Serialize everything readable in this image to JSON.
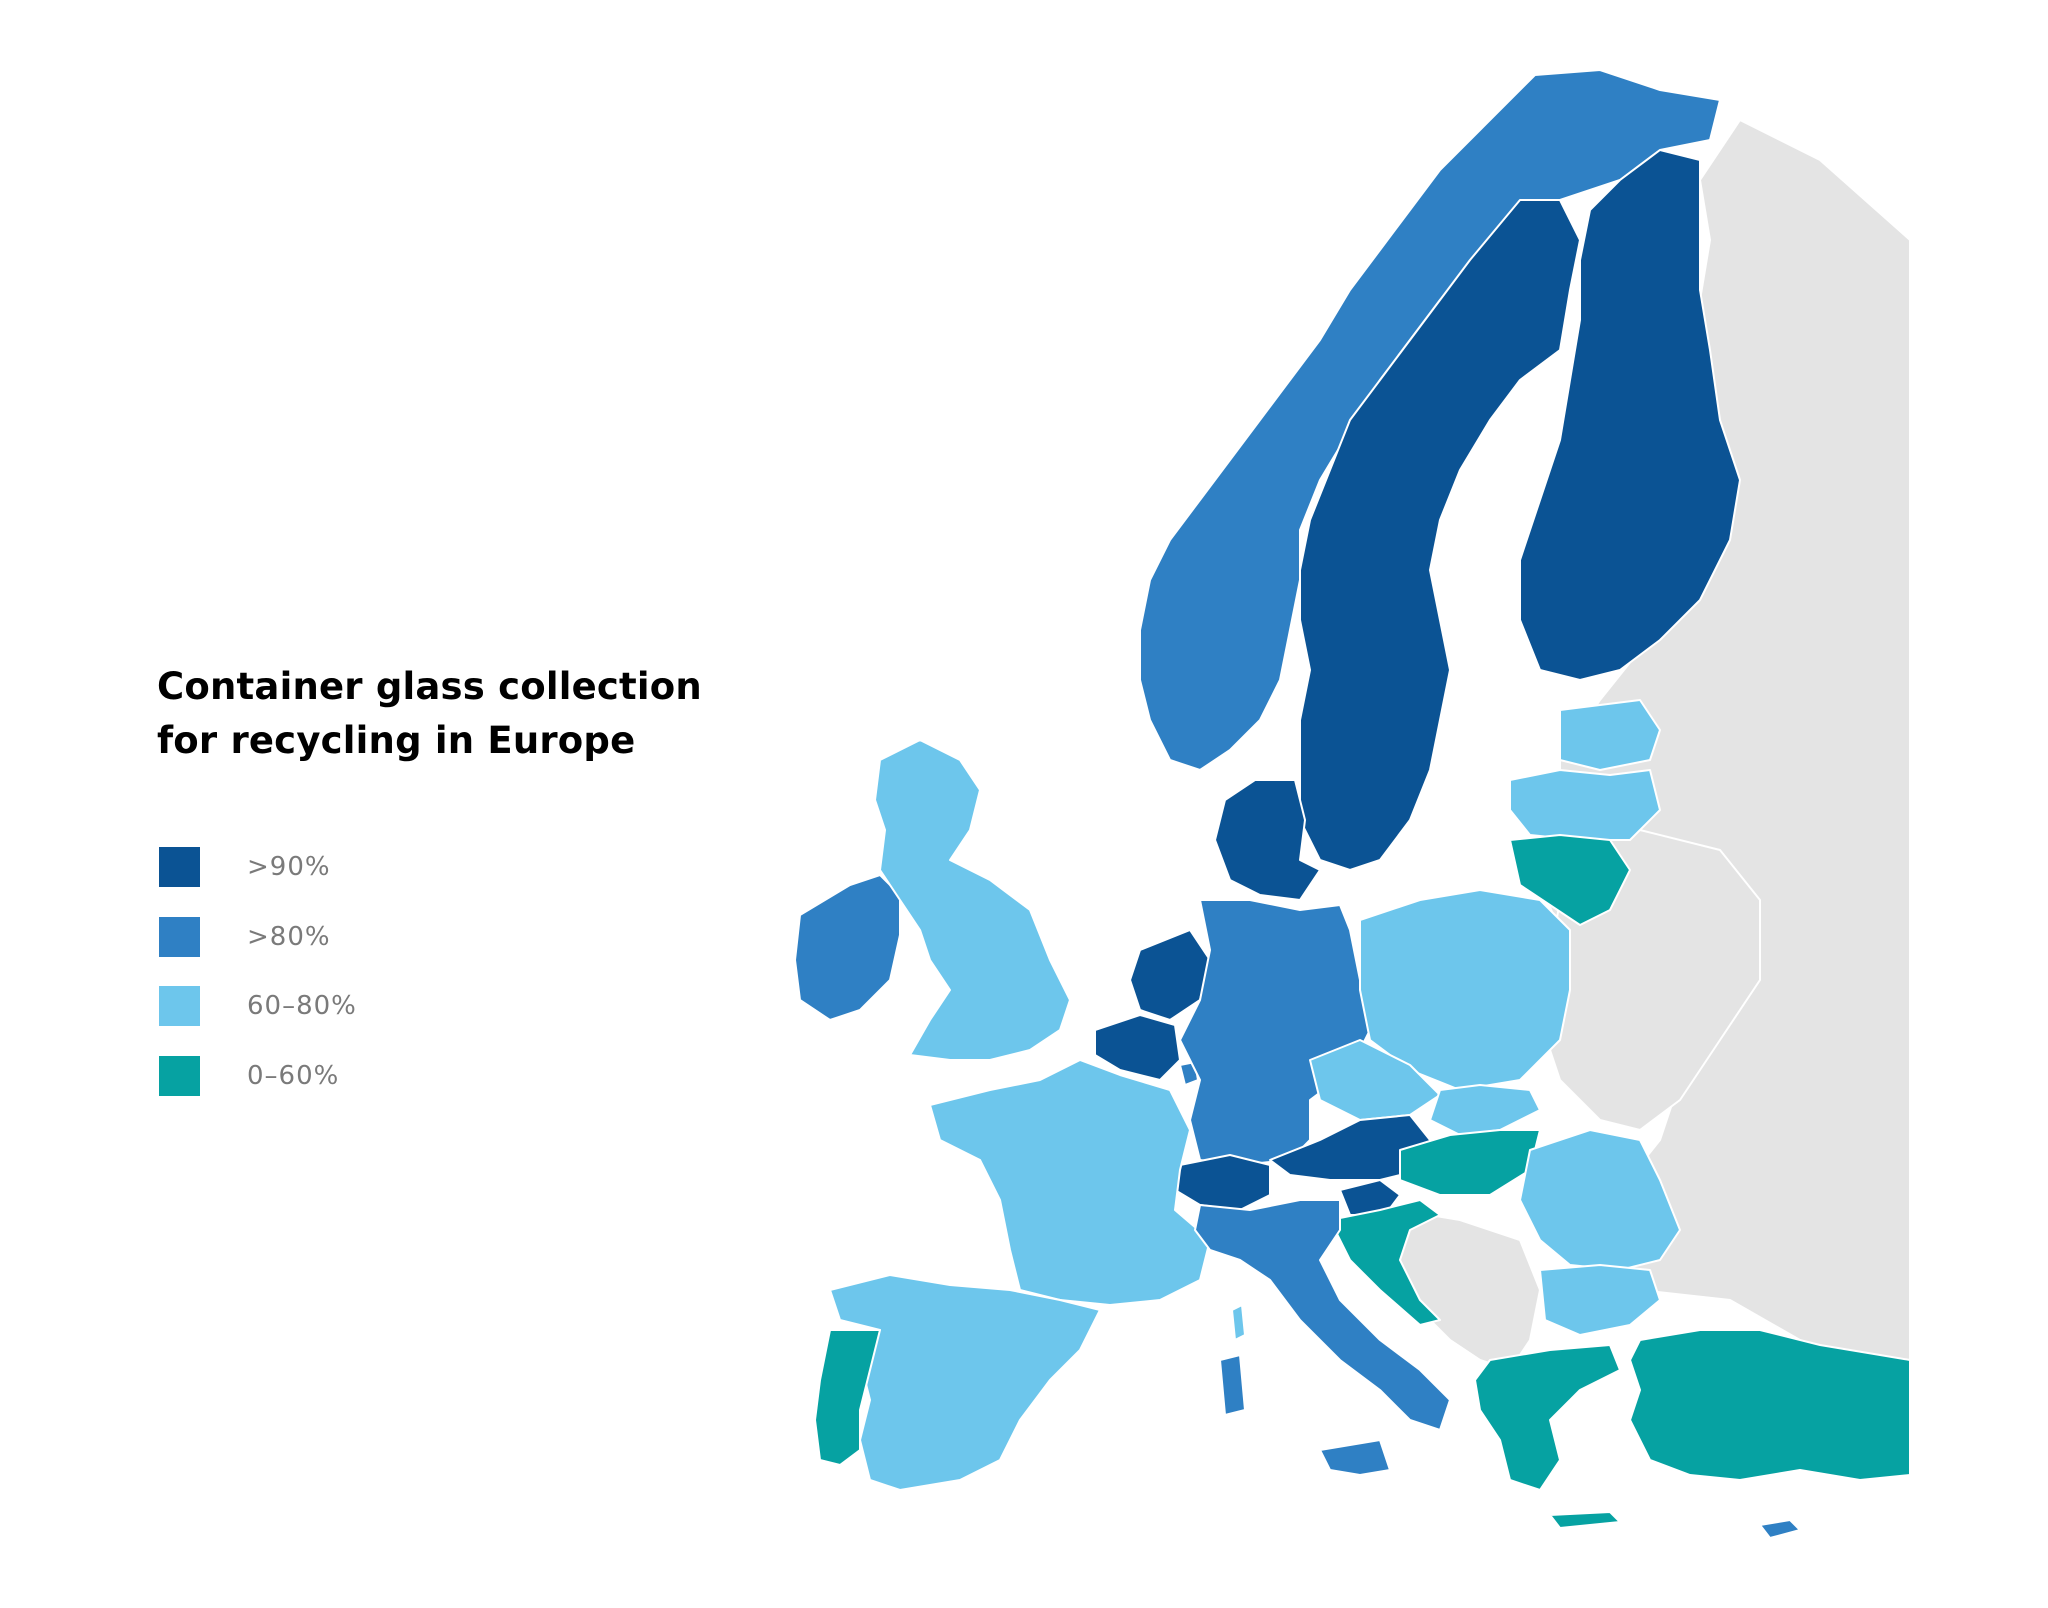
{
  "title": {
    "line1": "Container glass collection",
    "line2": "for recycling in Europe"
  },
  "legend": [
    {
      "label": ">90%",
      "color": "#0b5394"
    },
    {
      "label": ">80%",
      "color": "#2f80c4"
    },
    {
      "label": "60–80%",
      "color": "#6dc6ec"
    },
    {
      "label": "0–60%",
      "color": "#06a2a2"
    }
  ],
  "colors": {
    "gt90": "#0b5394",
    "gt80": "#2f80c4",
    "range_60_80": "#6dc6ec",
    "range_0_60": "#06a2a2",
    "no_data": "#e4e4e4",
    "background": "#ffffff"
  },
  "map_data": {
    "type": "choropleth",
    "categories": [
      ">90%",
      ">80%",
      "60–80%",
      "0–60%"
    ],
    "countries": [
      {
        "id": "sweden",
        "category": ">90%"
      },
      {
        "id": "finland",
        "category": ">90%"
      },
      {
        "id": "denmark",
        "category": ">90%"
      },
      {
        "id": "belgium",
        "category": ">90%"
      },
      {
        "id": "netherlands",
        "category": ">90%"
      },
      {
        "id": "switzerland",
        "category": ">90%"
      },
      {
        "id": "austria",
        "category": ">90%"
      },
      {
        "id": "slovenia",
        "category": ">90%"
      },
      {
        "id": "norway",
        "category": ">80%"
      },
      {
        "id": "ireland",
        "category": ">80%"
      },
      {
        "id": "germany",
        "category": ">80%"
      },
      {
        "id": "italy",
        "category": ">80%"
      },
      {
        "id": "luxembourg",
        "category": ">80%"
      },
      {
        "id": "cyprus",
        "category": ">80%"
      },
      {
        "id": "united-kingdom",
        "category": "60–80%"
      },
      {
        "id": "france",
        "category": "60–80%"
      },
      {
        "id": "spain",
        "category": "60–80%"
      },
      {
        "id": "poland",
        "category": "60–80%"
      },
      {
        "id": "czechia",
        "category": "60–80%"
      },
      {
        "id": "slovakia",
        "category": "60–80%"
      },
      {
        "id": "romania",
        "category": "60–80%"
      },
      {
        "id": "bulgaria",
        "category": "60–80%"
      },
      {
        "id": "estonia",
        "category": "60–80%"
      },
      {
        "id": "latvia",
        "category": "60–80%"
      },
      {
        "id": "portugal",
        "category": "0–60%"
      },
      {
        "id": "lithuania",
        "category": "0–60%"
      },
      {
        "id": "hungary",
        "category": "0–60%"
      },
      {
        "id": "croatia",
        "category": "0–60%"
      },
      {
        "id": "greece",
        "category": "0–60%"
      },
      {
        "id": "turkey",
        "category": "0–60%"
      }
    ]
  }
}
